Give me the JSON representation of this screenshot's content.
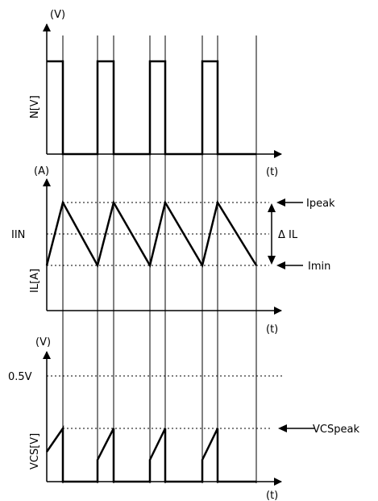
{
  "panel_top": {
    "unit_label": "(V)",
    "y_label": "N[V]",
    "t_label": "(t)"
  },
  "panel_mid": {
    "unit_label": "(A)",
    "y_label": "IL[A]",
    "t_label": "(t)",
    "iin_label": "IIN",
    "ipeak_label": "Ipeak",
    "imin_label": "Imin",
    "delta_label": "Δ IL"
  },
  "panel_bottom": {
    "unit_label": "(V)",
    "y_label": "VCS[V]",
    "t_label": "(t)",
    "ref_label": "0.5V",
    "vcspeak_label": "VCSpeak"
  },
  "colors": {
    "stroke": "#000000",
    "background": "#ffffff"
  }
}
